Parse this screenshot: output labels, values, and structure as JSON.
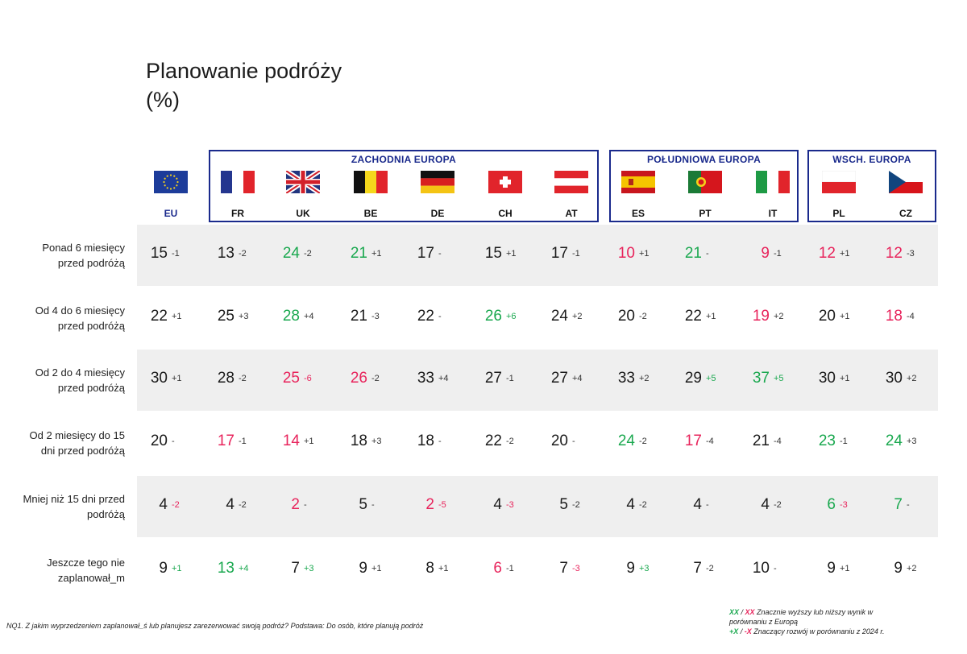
{
  "title": "Planowanie podróży",
  "subtitle": "(%)",
  "groups": [
    {
      "label": "ZACHODNIA EUROPA",
      "countries": [
        "FR",
        "UK",
        "BE",
        "DE",
        "CH",
        "AT"
      ]
    },
    {
      "label": "POŁUDNIOWA EUROPA",
      "countries": [
        "ES",
        "PT",
        "IT"
      ]
    },
    {
      "label": "WSCH. EUROPA",
      "countries": [
        "PL",
        "CZ"
      ]
    }
  ],
  "columns": [
    {
      "code": "EU",
      "flag": "eu-flag-icon"
    },
    {
      "code": "FR",
      "flag": "france-flag-icon"
    },
    {
      "code": "UK",
      "flag": "uk-flag-icon"
    },
    {
      "code": "BE",
      "flag": "belgium-flag-icon"
    },
    {
      "code": "DE",
      "flag": "germany-flag-icon"
    },
    {
      "code": "CH",
      "flag": "switzerland-flag-icon"
    },
    {
      "code": "AT",
      "flag": "austria-flag-icon"
    },
    {
      "code": "ES",
      "flag": "spain-flag-icon"
    },
    {
      "code": "PT",
      "flag": "portugal-flag-icon"
    },
    {
      "code": "IT",
      "flag": "italy-flag-icon"
    },
    {
      "code": "PL",
      "flag": "poland-flag-icon"
    },
    {
      "code": "CZ",
      "flag": "czechia-flag-icon"
    }
  ],
  "colors": {
    "significantly_higher": "#1aa84f",
    "significantly_lower": "#e8245c",
    "group_border": "#1a2a8c"
  },
  "chart_data": {
    "type": "table",
    "title": "Planowanie podróży",
    "unit": "(%)",
    "columns": [
      "EU",
      "FR",
      "UK",
      "BE",
      "DE",
      "CH",
      "AT",
      "ES",
      "PT",
      "IT",
      "PL",
      "CZ"
    ],
    "rows": [
      {
        "label": [
          "Ponad 6 miesięcy",
          "przed podróżą"
        ],
        "values": [
          15,
          13,
          24,
          21,
          17,
          15,
          17,
          10,
          21,
          9,
          12,
          12
        ],
        "changes": [
          "-1",
          "-2",
          "-2",
          "+1",
          "-",
          "+1",
          "-1",
          "+1",
          "-",
          "-1",
          "+1",
          "-3"
        ],
        "value_flags": [
          "",
          "",
          "hi",
          "hi",
          "",
          "",
          "",
          "lo",
          "hi",
          "lo",
          "lo",
          "lo"
        ],
        "change_flags": [
          "",
          "",
          "",
          "",
          "",
          "",
          "",
          "",
          "",
          "",
          "",
          ""
        ]
      },
      {
        "label": [
          "Od 4 do 6 miesięcy",
          "przed podróżą"
        ],
        "values": [
          22,
          25,
          28,
          21,
          22,
          26,
          24,
          20,
          22,
          19,
          20,
          18
        ],
        "changes": [
          "+1",
          "+3",
          "+4",
          "-3",
          "-",
          "+6",
          "+2",
          "-2",
          "+1",
          "+2",
          "+1",
          "-4"
        ],
        "value_flags": [
          "",
          "",
          "hi",
          "",
          "",
          "hi",
          "",
          "",
          "",
          "lo",
          "",
          "lo"
        ],
        "change_flags": [
          "",
          "",
          "",
          "",
          "",
          "up",
          "",
          "",
          "",
          "",
          "",
          ""
        ]
      },
      {
        "label": [
          "Od 2 do 4 miesięcy",
          "przed podróżą"
        ],
        "values": [
          30,
          28,
          25,
          26,
          33,
          27,
          27,
          33,
          29,
          37,
          30,
          30
        ],
        "changes": [
          "+1",
          "-2",
          "-6",
          "-2",
          "+4",
          "-1",
          "+4",
          "+2",
          "+5",
          "+5",
          "+1",
          "+2"
        ],
        "value_flags": [
          "",
          "",
          "lo",
          "lo",
          "",
          "",
          "",
          "",
          "",
          "hi",
          "",
          ""
        ],
        "change_flags": [
          "",
          "",
          "down",
          "",
          "",
          "",
          "",
          "",
          "up",
          "up",
          "",
          ""
        ]
      },
      {
        "label": [
          "Od 2 miesięcy do 15",
          "dni przed podróżą"
        ],
        "values": [
          20,
          17,
          14,
          18,
          18,
          22,
          20,
          24,
          17,
          21,
          23,
          24
        ],
        "changes": [
          "-",
          "-1",
          "+1",
          "+3",
          "-",
          "-2",
          "-",
          "-2",
          "-4",
          "-4",
          "-1",
          "+3"
        ],
        "value_flags": [
          "",
          "lo",
          "lo",
          "",
          "",
          "",
          "",
          "hi",
          "lo",
          "",
          "hi",
          "hi"
        ],
        "change_flags": [
          "",
          "",
          "",
          "",
          "",
          "",
          "",
          "",
          "",
          "",
          "",
          ""
        ]
      },
      {
        "label": [
          "Mniej niż 15 dni przed",
          "podróżą"
        ],
        "values": [
          4,
          4,
          2,
          5,
          2,
          4,
          5,
          4,
          4,
          4,
          6,
          7
        ],
        "changes": [
          "-2",
          "-2",
          "-",
          "-",
          "-5",
          "-3",
          "-2",
          "-2",
          "-",
          "-2",
          "-3",
          "-"
        ],
        "value_flags": [
          "",
          "",
          "lo",
          "",
          "lo",
          "",
          "",
          "",
          "",
          "",
          "hi",
          "hi"
        ],
        "change_flags": [
          "down",
          "",
          "",
          "",
          "down",
          "down",
          "",
          "",
          "",
          "",
          "down",
          ""
        ]
      },
      {
        "label": [
          "Jeszcze tego nie",
          "zaplanował_m"
        ],
        "values": [
          9,
          13,
          7,
          9,
          8,
          6,
          7,
          9,
          7,
          10,
          9,
          9
        ],
        "changes": [
          "+1",
          "+4",
          "+3",
          "+1",
          "+1",
          "-1",
          "-3",
          "+3",
          "-2",
          "-",
          "+1",
          "+2"
        ],
        "value_flags": [
          "",
          "hi",
          "",
          "",
          "",
          "lo",
          "",
          "",
          "",
          "",
          "",
          ""
        ],
        "change_flags": [
          "up",
          "up",
          "up",
          "",
          "",
          "",
          "down",
          "up",
          "",
          "",
          "",
          ""
        ]
      }
    ]
  },
  "footnote": "NQ1. Z jakim wyprzedzeniem zaplanował_ś lub planujesz zarezerwować swoją podróż? Podstawa: Do osób, które planują podróż",
  "legend": {
    "line1_marks_green": "XX",
    "line1_sep": " / ",
    "line1_marks_red": "XX",
    "line1_text": " Znacznie wyższy lub niższy wynik w",
    "line2_text": "porównaniu z Europą",
    "line3_marks_green": "+X",
    "line3_sep": " / ",
    "line3_marks_red": "-X",
    "line3_text": " Znaczący rozwój w porównaniu z 2024 r."
  }
}
